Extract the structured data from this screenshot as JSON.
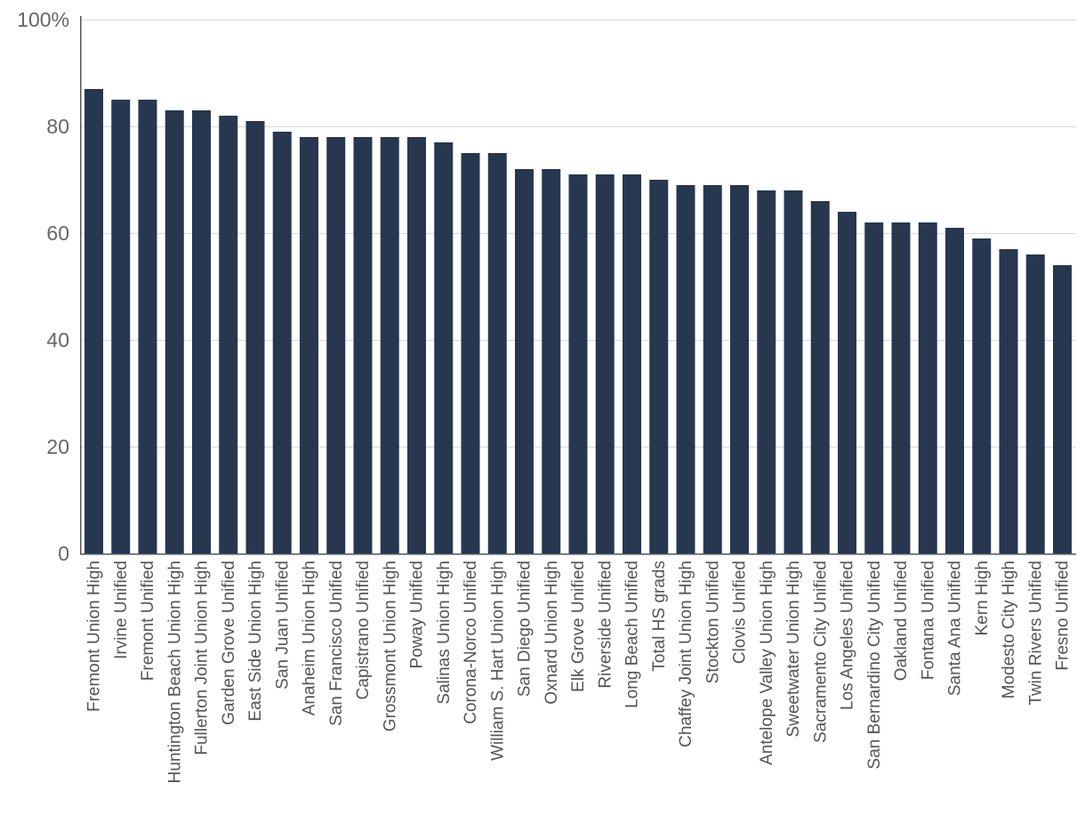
{
  "colors": {
    "bar": "#283750",
    "gridline": "#d9d9d9",
    "axis": "#555555",
    "ytick_text": "#666666",
    "xtick_text": "#555555"
  },
  "chart_data": {
    "type": "bar",
    "title": "",
    "xlabel": "",
    "ylabel": "",
    "ylim": [
      0,
      100
    ],
    "y_ticks": [
      0,
      20,
      40,
      60,
      80,
      100
    ],
    "y_tick_labels": [
      "0",
      "20",
      "40",
      "60",
      "80",
      "100%"
    ],
    "grid": true,
    "legend": "none",
    "categories": [
      "Fremont Union High",
      "Irvine Unified",
      "Fremont Unified",
      "Huntington Beach Union High",
      "Fullerton Joint Union High",
      "Garden Grove Unified",
      "East Side Union High",
      "San Juan Unified",
      "Anaheim Union High",
      "San Francisco Unified",
      "Capistrano Unified",
      "Grossmont Union High",
      "Poway Unified",
      "Salinas Union High",
      "Corona-Norco Unified",
      "William S. Hart Union High",
      "San Diego Unified",
      "Oxnard Union High",
      "Elk Grove Unified",
      "Riverside Unified",
      "Long Beach Unified",
      "Total HS grads",
      "Chaffey Joint Union High",
      "Stockton Unified",
      "Clovis Unified",
      "Antelope Valley Union High",
      "Sweetwater Union High",
      "Sacramento City Unified",
      "Los Angeles Unified",
      "San Bernardino City Unified",
      "Oakland Unified",
      "Fontana Unified",
      "Santa Ana Unified",
      "Kern High",
      "Modesto City High",
      "Twin Rivers Unified",
      "Fresno Unified"
    ],
    "values": [
      87,
      85,
      85,
      83,
      83,
      82,
      81,
      79,
      78,
      78,
      78,
      78,
      78,
      77,
      75,
      75,
      72,
      72,
      71,
      71,
      71,
      70,
      69,
      69,
      69,
      68,
      68,
      66,
      64,
      62,
      62,
      62,
      61,
      59,
      57,
      56,
      54
    ]
  }
}
